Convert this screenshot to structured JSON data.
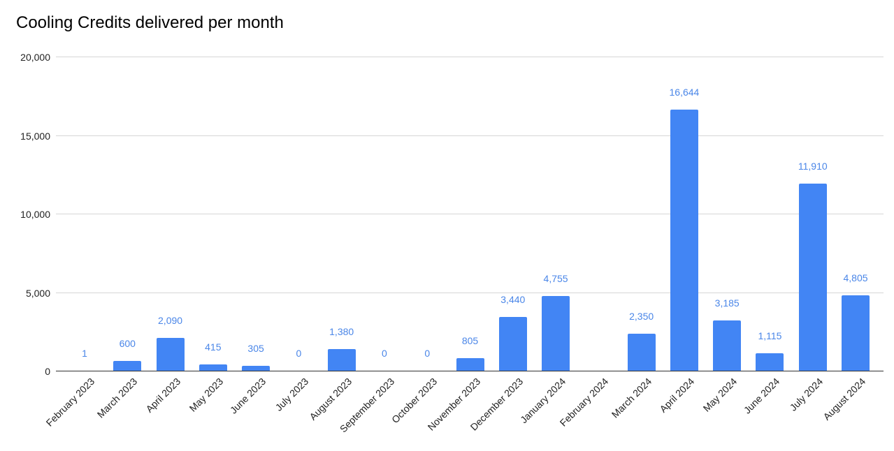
{
  "chart_data": {
    "type": "bar",
    "title": "Cooling Credits delivered per month",
    "xlabel": "",
    "ylabel": "",
    "ylim": [
      0,
      20000
    ],
    "yticks": [
      0,
      5000,
      10000,
      15000,
      20000
    ],
    "ytick_labels": [
      "0",
      "5,000",
      "10,000",
      "15,000",
      "20,000"
    ],
    "grid": true,
    "legend": null,
    "bar_color": "#4285f4",
    "label_color": "#4a86e8",
    "categories": [
      "February 2023",
      "March 2023",
      "April 2023",
      "May 2023",
      "June 2023",
      "July 2023",
      "August 2023",
      "September 2023",
      "October 2023",
      "November 2023",
      "December 2023",
      "January 2024",
      "February 2024",
      "March 2024",
      "April 2024",
      "May 2024",
      "June 2024",
      "July 2024",
      "August 2024"
    ],
    "values": [
      1,
      600,
      2090,
      415,
      305,
      0,
      1380,
      0,
      0,
      805,
      3440,
      4755,
      null,
      2350,
      16644,
      3185,
      1115,
      11910,
      4805
    ],
    "data_labels": [
      "1",
      "600",
      "2,090",
      "415",
      "305",
      "0",
      "1,380",
      "0",
      "0",
      "805",
      "3,440",
      "4,755",
      "",
      "2,350",
      "16,644",
      "3,185",
      "1,115",
      "11,910",
      "4,805"
    ]
  }
}
